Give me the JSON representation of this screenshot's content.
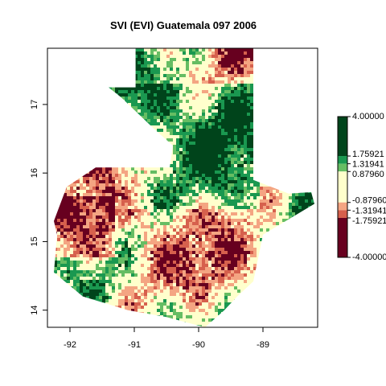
{
  "title": "SVI (EVI) Guatemala 097 2006",
  "chart_data": {
    "type": "heatmap",
    "title": "SVI (EVI) Guatemala 097 2006",
    "xlabel": "",
    "ylabel": "",
    "xlim": [
      -92.35,
      -88.15
    ],
    "ylim": [
      13.75,
      17.82
    ],
    "x_ticks": [
      -92,
      -91,
      -90,
      -89
    ],
    "x_tick_labels": [
      "-92",
      "-91",
      "-90",
      "-89"
    ],
    "y_ticks": [
      14,
      15,
      16,
      17
    ],
    "y_tick_labels": [
      "14",
      "15",
      "16",
      "17"
    ],
    "grid": false,
    "legend": {
      "placement": "right",
      "range": [
        -4.0,
        4.0
      ],
      "breaks": [
        4.0,
        1.75921,
        1.31941,
        0.879604,
        -0.879604,
        -1.31941,
        -1.75921,
        -4.0
      ],
      "labels": [
        "4.00000",
        "1.75921",
        "1.31941",
        "0.87960",
        "-0.87960",
        "-1.31941",
        "-1.75921",
        "-4.00000"
      ],
      "colors": [
        "#00441b",
        "#1a9850",
        "#66bd63",
        "#ffffcc",
        "#f4a582",
        "#d6604d",
        "#67001f"
      ]
    },
    "region_outline_lonlat": [
      [
        -90.98,
        17.82
      ],
      [
        -89.15,
        17.82
      ],
      [
        -89.15,
        15.9
      ],
      [
        -88.6,
        15.7
      ],
      [
        -88.25,
        15.72
      ],
      [
        -88.2,
        15.55
      ],
      [
        -89.0,
        15.1
      ],
      [
        -89.15,
        14.42
      ],
      [
        -89.4,
        14.2
      ],
      [
        -89.6,
        14.0
      ],
      [
        -89.9,
        13.75
      ],
      [
        -90.5,
        13.9
      ],
      [
        -91.1,
        14.0
      ],
      [
        -91.8,
        14.2
      ],
      [
        -92.25,
        14.55
      ],
      [
        -92.2,
        15.1
      ],
      [
        -92.25,
        15.3
      ],
      [
        -92.05,
        15.8
      ],
      [
        -91.6,
        16.08
      ],
      [
        -90.45,
        16.08
      ],
      [
        -90.4,
        16.4
      ],
      [
        -90.7,
        16.65
      ],
      [
        -91.2,
        17.1
      ],
      [
        -91.4,
        17.25
      ],
      [
        -90.98,
        17.25
      ]
    ]
  }
}
